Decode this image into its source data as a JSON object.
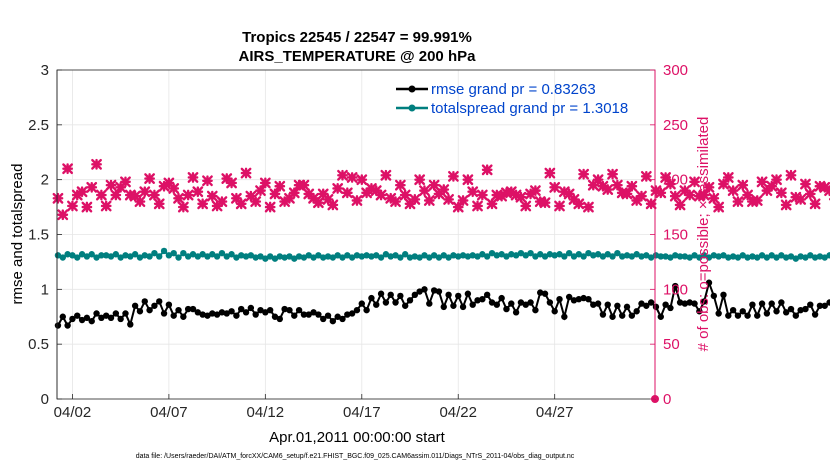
{
  "chart_data": {
    "type": "line",
    "title": "Tropics 22545 / 22547 = 99.991%",
    "subtitle": "AIRS_TEMPERATURE @ 200 hPa",
    "xlabel": "Apr.01,2011 00:00:00 start",
    "ylabel_left": "rmse and totalspread",
    "ylabel_right": "# of obs: o=possible; ×=assimilated",
    "footer": "data file: /Users/raeder/DAI/ATM_forcXX/CAM6_setup/f.e21.FHIST_BGC.f09_025.CAM6assim.011/Diags_NTrS_2011-04/obs_diag_output.nc",
    "x_ticks": [
      {
        "label": "04/02",
        "day": 2
      },
      {
        "label": "04/07",
        "day": 7
      },
      {
        "label": "04/12",
        "day": 12
      },
      {
        "label": "04/17",
        "day": 17
      },
      {
        "label": "04/22",
        "day": 22
      },
      {
        "label": "04/27",
        "day": 27
      }
    ],
    "xlim": [
      1.2,
      32.2
    ],
    "ylim_left": [
      0,
      3
    ],
    "ylim_right": [
      0,
      300
    ],
    "y_ticks_left": [
      "0",
      "0.5",
      "1",
      "1.5",
      "2",
      "2.5",
      "3"
    ],
    "y_ticks_right": [
      "0",
      "50",
      "100",
      "150",
      "200",
      "250",
      "300"
    ],
    "series": [
      {
        "name": "rmse grand pr = 0.83263",
        "color": "#000000",
        "axis": "left",
        "start_day": 1.25,
        "step_day": 0.25,
        "values": [
          0.67,
          0.75,
          0.67,
          0.73,
          0.76,
          0.72,
          0.74,
          0.71,
          0.78,
          0.74,
          0.76,
          0.74,
          0.78,
          0.73,
          0.78,
          0.68,
          0.85,
          0.8,
          0.89,
          0.81,
          0.85,
          0.89,
          0.78,
          0.86,
          0.76,
          0.81,
          0.75,
          0.82,
          0.82,
          0.79,
          0.77,
          0.76,
          0.78,
          0.77,
          0.79,
          0.78,
          0.8,
          0.76,
          0.82,
          0.79,
          0.83,
          0.77,
          0.81,
          0.79,
          0.81,
          0.75,
          0.73,
          0.82,
          0.81,
          0.76,
          0.81,
          0.77,
          0.77,
          0.79,
          0.77,
          0.73,
          0.76,
          0.71,
          0.75,
          0.73,
          0.77,
          0.78,
          0.81,
          0.87,
          0.81,
          0.92,
          0.86,
          0.96,
          0.88,
          0.95,
          0.88,
          0.94,
          0.85,
          0.9,
          0.95,
          0.98,
          1.0,
          0.87,
          0.99,
          0.98,
          0.84,
          0.95,
          0.85,
          0.94,
          0.84,
          0.96,
          0.86,
          0.9,
          0.91,
          0.95,
          0.88,
          0.86,
          0.92,
          0.82,
          0.87,
          0.79,
          0.88,
          0.86,
          0.88,
          0.81,
          0.97,
          0.96,
          0.88,
          0.8,
          0.91,
          0.75,
          0.93,
          0.9,
          0.91,
          0.92,
          0.91,
          0.86,
          0.87,
          0.77,
          0.86,
          0.75,
          0.85,
          0.76,
          0.84,
          0.76,
          0.8,
          0.87,
          0.85,
          0.88,
          0.84,
          0.75,
          0.86,
          0.83,
          1.03,
          0.88,
          0.87,
          0.88,
          0.87,
          0.8,
          0.89,
          1.06,
          0.94,
          0.78,
          0.95,
          0.76,
          0.81,
          0.76,
          0.8,
          0.76,
          0.86,
          0.76,
          0.87,
          0.78,
          0.87,
          0.8,
          0.88,
          0.79,
          0.82,
          0.76,
          0.81,
          0.82,
          0.86,
          0.77,
          0.85,
          0.85,
          0.88,
          0.84,
          0.72,
          0.77,
          0.71,
          0.76,
          0.78
        ]
      },
      {
        "name": "totalspread grand pr = 1.3018",
        "color": "#007f7f",
        "axis": "left",
        "start_day": 1.25,
        "step_day": 0.25,
        "values": [
          1.31,
          1.29,
          1.32,
          1.31,
          1.29,
          1.32,
          1.3,
          1.32,
          1.29,
          1.31,
          1.31,
          1.3,
          1.32,
          1.29,
          1.31,
          1.3,
          1.32,
          1.29,
          1.31,
          1.3,
          1.33,
          1.3,
          1.35,
          1.31,
          1.33,
          1.29,
          1.33,
          1.3,
          1.32,
          1.3,
          1.32,
          1.3,
          1.32,
          1.3,
          1.33,
          1.3,
          1.32,
          1.29,
          1.31,
          1.3,
          1.31,
          1.29,
          1.3,
          1.28,
          1.3,
          1.28,
          1.3,
          1.29,
          1.3,
          1.28,
          1.3,
          1.29,
          1.31,
          1.29,
          1.31,
          1.29,
          1.3,
          1.29,
          1.31,
          1.29,
          1.31,
          1.29,
          1.31,
          1.3,
          1.31,
          1.3,
          1.31,
          1.29,
          1.32,
          1.3,
          1.31,
          1.29,
          1.32,
          1.29,
          1.3,
          1.29,
          1.31,
          1.29,
          1.31,
          1.29,
          1.31,
          1.29,
          1.31,
          1.3,
          1.31,
          1.3,
          1.31,
          1.3,
          1.32,
          1.3,
          1.33,
          1.31,
          1.32,
          1.3,
          1.32,
          1.31,
          1.33,
          1.31,
          1.33,
          1.3,
          1.32,
          1.3,
          1.32,
          1.31,
          1.32,
          1.3,
          1.33,
          1.3,
          1.32,
          1.3,
          1.33,
          1.31,
          1.32,
          1.3,
          1.32,
          1.3,
          1.33,
          1.3,
          1.31,
          1.3,
          1.32,
          1.3,
          1.31,
          1.29,
          1.31,
          1.3,
          1.3,
          1.29,
          1.31,
          1.3,
          1.3,
          1.29,
          1.31,
          1.29,
          1.31,
          1.29,
          1.31,
          1.3,
          1.31,
          1.29,
          1.3,
          1.29,
          1.31,
          1.29,
          1.3,
          1.29,
          1.31,
          1.29,
          1.31,
          1.29,
          1.31,
          1.29,
          1.3,
          1.28,
          1.3,
          1.29,
          1.31,
          1.29,
          1.3,
          1.29,
          1.31,
          1.29,
          1.3,
          1.29,
          1.31,
          1.29,
          1.29,
          1.28,
          1.28
        ]
      },
      {
        "name": "# of obs assimilated",
        "color": "#dd1166",
        "axis": "right",
        "marker": "cross",
        "start_day": 1.25,
        "step_day": 0.25,
        "values": [
          183,
          168,
          210,
          176,
          186,
          189,
          175,
          193,
          214,
          186,
          176,
          195,
          186,
          193,
          198,
          186,
          185,
          180,
          189,
          201,
          186,
          178,
          194,
          197,
          192,
          183,
          175,
          186,
          202,
          189,
          178,
          199,
          185,
          176,
          180,
          201,
          197,
          183,
          178,
          206,
          185,
          180,
          190,
          197,
          175,
          187,
          194,
          180,
          183,
          188,
          195,
          195,
          187,
          183,
          179,
          187,
          182,
          177,
          192,
          204,
          188,
          202,
          181,
          200,
          188,
          192,
          190,
          186,
          204,
          183,
          180,
          195,
          186,
          178,
          182,
          200,
          190,
          181,
          195,
          187,
          191,
          182,
          203,
          175,
          181,
          200,
          189,
          176,
          186,
          209,
          178,
          186,
          185,
          188,
          189,
          186,
          184,
          176,
          187,
          190,
          180,
          179,
          206,
          193,
          176,
          189,
          187,
          182,
          178,
          205,
          175,
          195,
          200,
          194,
          191,
          205,
          195,
          188,
          187,
          194,
          181,
          185,
          203,
          178,
          190,
          188,
          202,
          196,
          185,
          177,
          190,
          186,
          198,
          185,
          186,
          193,
          183,
          175,
          196,
          202,
          190,
          180,
          195,
          186,
          180,
          181,
          198,
          190,
          194,
          200,
          188,
          177,
          204,
          184,
          182,
          196,
          187,
          178,
          194,
          193,
          190,
          186,
          191,
          183,
          213,
          190,
          182,
          193,
          186,
          183
        ]
      },
      {
        "name": "# of obs possible",
        "color": "#dd1166",
        "axis": "right",
        "marker": "circle",
        "start_day": 32.2,
        "step_day": 0,
        "values": [
          0
        ]
      }
    ],
    "legend": {
      "position": "top-right",
      "entries": [
        "rmse grand pr = 0.83263",
        "totalspread grand pr = 1.3018"
      ],
      "text_color": "#0044cc"
    }
  }
}
